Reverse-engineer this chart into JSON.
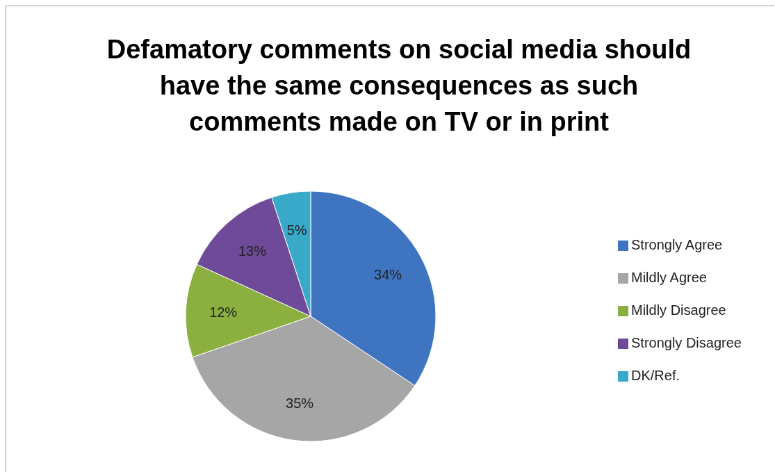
{
  "chart_data": {
    "type": "pie",
    "title": "Defamatory comments on social media should have the same consequences as such comments made on TV or in print",
    "categories": [
      "Strongly Agree",
      "Mildly Agree",
      "Mildly Disagree",
      "Strongly Disagree",
      "DK/Ref."
    ],
    "values": [
      34,
      35,
      12,
      13,
      5
    ],
    "colors": [
      "#3f74c0",
      "#a6a6a6",
      "#8cb03f",
      "#6e4a98",
      "#38a9c9"
    ],
    "value_labels": [
      "34%",
      "35%",
      "12%",
      "13%",
      "5%"
    ],
    "legend": "right"
  }
}
